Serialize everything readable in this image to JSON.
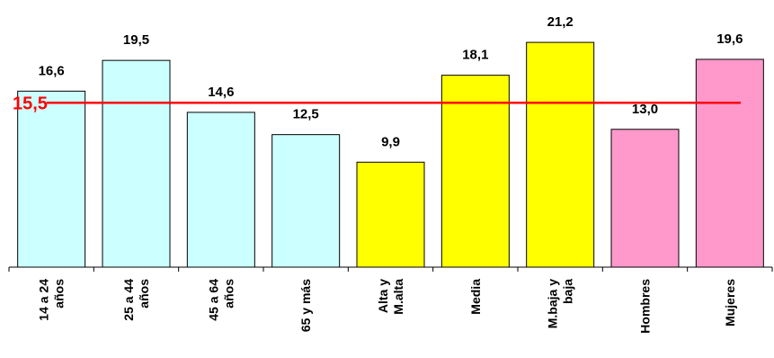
{
  "chart_data": {
    "type": "bar",
    "title": "",
    "xlabel": "",
    "ylabel": "",
    "ylim": [
      0,
      23.5
    ],
    "grid": false,
    "legend": "none",
    "categories": [
      [
        "14 a 24",
        "años"
      ],
      [
        "25 a 44",
        "años"
      ],
      [
        "45 a 64",
        "años"
      ],
      [
        "65 y más"
      ],
      [
        "Alta y",
        "M.alta"
      ],
      [
        "Media"
      ],
      [
        "M.baja y",
        "baja"
      ],
      [
        "Hombres"
      ],
      [
        "Mujeres"
      ]
    ],
    "values": [
      16.6,
      19.5,
      14.6,
      12.5,
      9.9,
      18.1,
      21.2,
      13.0,
      19.6
    ],
    "value_labels": [
      "16,6",
      "19,5",
      "14,6",
      "12,5",
      "9,9",
      "18,1",
      "21,2",
      "13,0",
      "19,6"
    ],
    "bar_colors": [
      "#ccffff",
      "#ccffff",
      "#ccffff",
      "#ccffff",
      "#ffff00",
      "#ffff00",
      "#ffff00",
      "#ff99cc",
      "#ff99cc"
    ],
    "reference_line": {
      "value": 15.5,
      "label": "15,5",
      "color": "#ff0000"
    }
  }
}
